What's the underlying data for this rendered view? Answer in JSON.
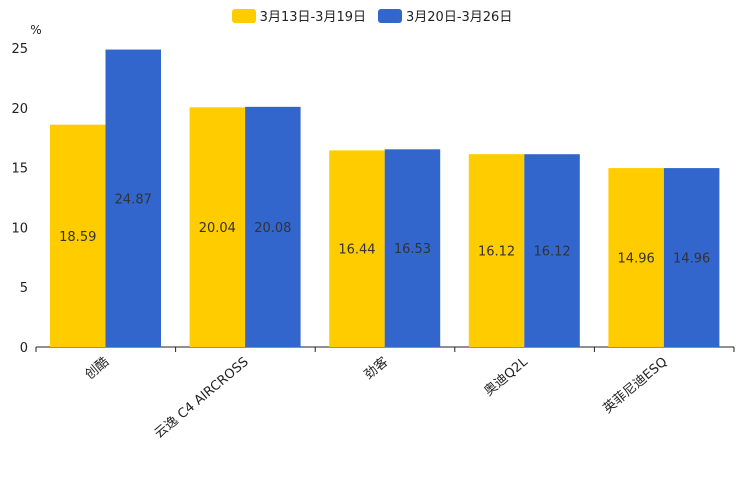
{
  "chart_data": {
    "type": "bar",
    "title": "",
    "ylabel": "%",
    "xlabel": "",
    "ylim": [
      0,
      25
    ],
    "yticks": [
      0,
      5,
      10,
      15,
      20,
      25
    ],
    "categories": [
      "创酷",
      "云逸 C4 AIRCROSS",
      "劲客",
      "奥迪Q2L",
      "英菲尼迪ESQ"
    ],
    "series": [
      {
        "name": "3月13日-3月19日",
        "color": "#FFCC00",
        "values": [
          18.59,
          20.04,
          16.44,
          16.12,
          14.96
        ]
      },
      {
        "name": "3月20日-3月26日",
        "color": "#3366CC",
        "values": [
          24.87,
          20.08,
          16.53,
          16.12,
          14.96
        ]
      }
    ],
    "legend_position": "top"
  }
}
